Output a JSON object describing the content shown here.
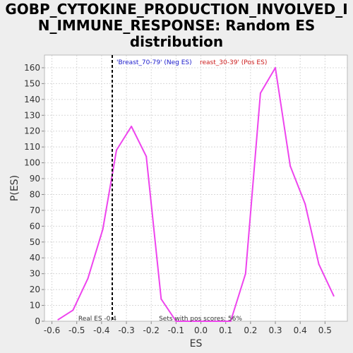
{
  "chart_data": {
    "type": "line",
    "title_lines": [
      "GOBP_CYTOKINE_PRODUCTION_INVOLVED_I",
      "N_IMMUNE_RESPONSE: Random ES",
      "distribution"
    ],
    "xlabel": "ES",
    "ylabel": "P(ES)",
    "xlim": [
      -0.63,
      0.59
    ],
    "ylim": [
      0,
      168
    ],
    "x_ticks": [
      -0.6,
      -0.5,
      -0.4,
      -0.3,
      -0.2,
      -0.1,
      0.0,
      0.1,
      0.2,
      0.3,
      0.4,
      0.5
    ],
    "x_tick_labels": [
      "-0.6",
      "-0.5",
      "-0.4",
      "-0.3",
      "-0.2",
      "-0.1",
      "0.0",
      "0.1",
      "0.2",
      "0.3",
      "0.4",
      "0.5"
    ],
    "y_ticks": [
      0,
      10,
      20,
      30,
      40,
      50,
      60,
      70,
      80,
      90,
      100,
      110,
      120,
      130,
      140,
      150,
      160
    ],
    "y_tick_labels": [
      "0",
      "10",
      "20",
      "30",
      "40",
      "50",
      "60",
      "70",
      "80",
      "90",
      "100",
      "110",
      "120",
      "130",
      "140",
      "150",
      "160"
    ],
    "grid": true,
    "series": [
      {
        "color": "#ee44ee",
        "x": [
          -0.575,
          -0.515,
          -0.455,
          -0.395,
          -0.34,
          -0.28,
          -0.22,
          -0.16,
          -0.1,
          -0.04,
          0.0,
          0.06,
          0.12,
          0.18,
          0.24,
          0.3,
          0.36,
          0.42,
          0.475,
          0.535
        ],
        "y": [
          1,
          7,
          27,
          58,
          108,
          123,
          104,
          14,
          0,
          0,
          0,
          0,
          0,
          30,
          144,
          160,
          98,
          74,
          36,
          16
        ]
      }
    ],
    "real_es": {
      "x": -0.357,
      "label": "Real ES -0.4"
    },
    "pos_scores_label": "Sets with pos scores: 56%",
    "legend": [
      {
        "text": "'Breast_70-79' (Neg ES)",
        "color": "#1a1acc"
      },
      {
        "text": "reast_30-39' (Pos ES)",
        "color": "#cc1a1a"
      }
    ],
    "colors": {
      "line": "#ee44ee",
      "plot_bg": "#ffffff",
      "grid": "#d8d8d8",
      "page_bg": "#eeeeee"
    }
  }
}
